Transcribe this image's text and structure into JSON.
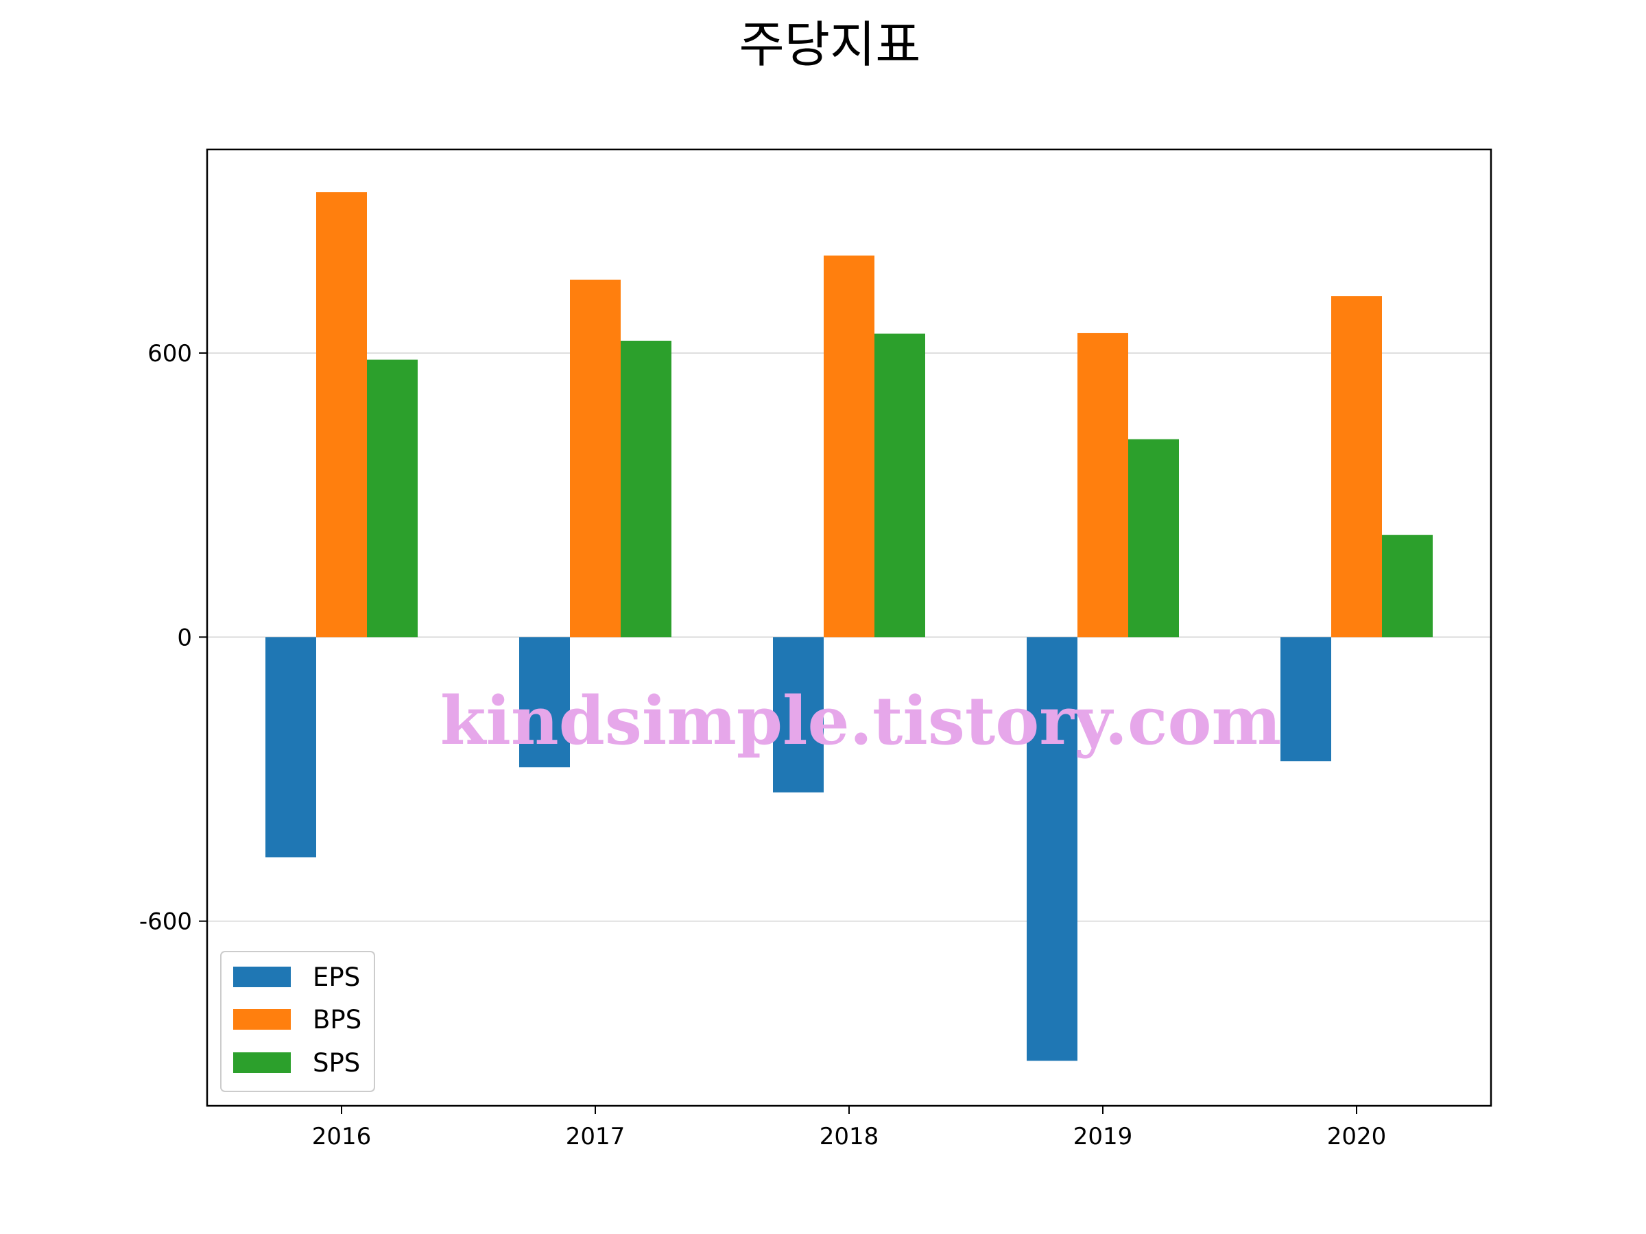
{
  "chart_data": {
    "type": "bar",
    "title": "주당지표",
    "xlabel": "",
    "ylabel": "",
    "categories": [
      "2016",
      "2017",
      "2018",
      "2019",
      "2020"
    ],
    "series": [
      {
        "name": "EPS",
        "color": "#1f77b4",
        "values": [
          -465,
          -275,
          -328,
          -895,
          -262
        ]
      },
      {
        "name": "BPS",
        "color": "#ff7f0e",
        "values": [
          940,
          755,
          806,
          642,
          720
        ]
      },
      {
        "name": "SPS",
        "color": "#2ca02c",
        "values": [
          586,
          626,
          641,
          418,
          216
        ]
      }
    ],
    "ylim": [
      -990,
      1030
    ],
    "yticks": [
      {
        "value": -600,
        "label": "-600"
      },
      {
        "value": 0,
        "label": "0"
      },
      {
        "value": 600,
        "label": "600"
      }
    ],
    "grid": "horizontal",
    "legend_position": "lower-left",
    "watermark": "kindsimple.tistory.com"
  }
}
